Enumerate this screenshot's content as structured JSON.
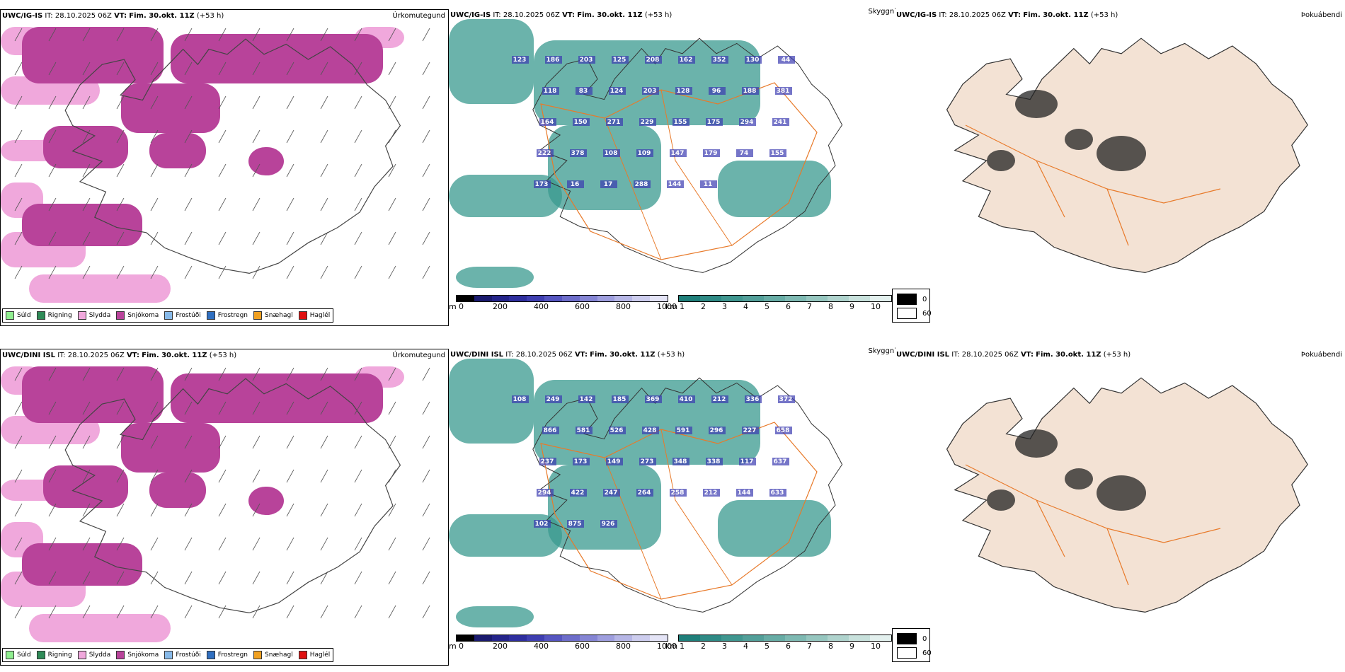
{
  "rows": [
    {
      "model": "UWC/IG-IS",
      "it_label": "IT:",
      "it_value": "28.10.2025 06Z",
      "vt_label": "VT:",
      "vt_value": "Fim. 30.okt. 11Z",
      "offset": "(+53 h)",
      "precip_title": "Úrkomutegund",
      "cloud_title": "Skyggni",
      "fog_title": "Þokuábendi",
      "cloud_labels": [
        "123",
        "186",
        "203",
        "125",
        "208",
        "162",
        "352",
        "130",
        "44",
        "118",
        "83",
        "124",
        "203",
        "128",
        "96",
        "188",
        "381",
        "164",
        "150",
        "271",
        "229",
        "155",
        "175",
        "294",
        "241",
        "222",
        "378",
        "108",
        "109",
        "147",
        "179",
        "74",
        "155",
        "173",
        "16",
        "17",
        "288",
        "144",
        "11"
      ]
    },
    {
      "model": "UWC/DINI ISL",
      "it_label": "IT:",
      "it_value": "28.10.2025 06Z",
      "vt_label": "VT:",
      "vt_value": "Fim. 30.okt. 11Z",
      "offset": "(+53 h)",
      "precip_title": "Úrkomutegund",
      "cloud_title": "Skyggni",
      "fog_title": "Þokuábendi",
      "cloud_labels": [
        "108",
        "249",
        "142",
        "185",
        "369",
        "410",
        "212",
        "336",
        "372",
        "866",
        "581",
        "526",
        "428",
        "591",
        "296",
        "227",
        "658",
        "237",
        "173",
        "149",
        "273",
        "348",
        "338",
        "117",
        "637",
        "294",
        "422",
        "247",
        "264",
        "258",
        "212",
        "144",
        "633",
        "102",
        "875",
        "926"
      ]
    }
  ],
  "precip_legend": [
    {
      "label": "Súld",
      "color": "#90ee90"
    },
    {
      "label": "Rigning",
      "color": "#2e8b57"
    },
    {
      "label": "Slydda",
      "color": "#f0a8dc"
    },
    {
      "label": "Snjókoma",
      "color": "#b8439a"
    },
    {
      "label": "Frostúði",
      "color": "#87b9e8"
    },
    {
      "label": "Frostregn",
      "color": "#2f6fc0"
    },
    {
      "label": "Snæhagl",
      "color": "#f0a020"
    },
    {
      "label": "Haglél",
      "color": "#e01010"
    }
  ],
  "colorbars": {
    "height": {
      "unit": "m",
      "ticks": [
        "0",
        "200",
        "400",
        "600",
        "800",
        "1000"
      ],
      "colors": [
        "#000000",
        "#1a1a6e",
        "#24248a",
        "#2e2e9e",
        "#3e3eb0",
        "#5555c0",
        "#6d6dca",
        "#8585d4",
        "#9e9ede",
        "#b6b6e6",
        "#cdcdee",
        "#e4e4f6"
      ]
    },
    "visibility": {
      "unit": "km",
      "ticks": [
        "1",
        "2",
        "3",
        "4",
        "5",
        "6",
        "7",
        "8",
        "9",
        "10"
      ],
      "colors": [
        "#1f7f7a",
        "#2e8a85",
        "#3f968f",
        "#529f99",
        "#67aca5",
        "#7eb9b2",
        "#96c6bf",
        "#afd3cd",
        "#c8e1dc",
        "#e3f0ee"
      ]
    },
    "fog": {
      "values": [
        "0",
        "60"
      ],
      "colors": [
        "#000000",
        "#ffffff"
      ]
    }
  },
  "colors": {
    "snow": "#b8439a",
    "sleet": "#f0a8dc",
    "rain": "#2e8b57",
    "cloud_teal": "#3a9a8f",
    "land_fog": "#f3e2d4",
    "roads": "#e87a2a"
  }
}
